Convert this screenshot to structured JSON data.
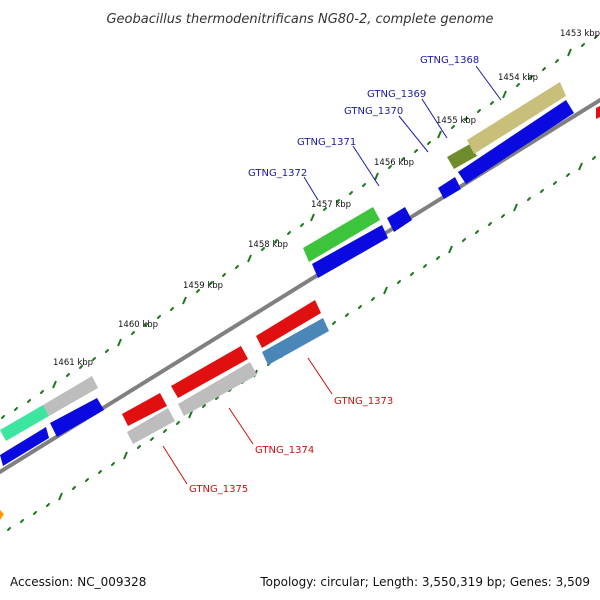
{
  "title": "Geobacillus thermodenitrificans NG80-2, complete genome",
  "footer": {
    "accession": "Accession: NC_009328",
    "summary": "Topology: circular; Length: 3,550,319 bp; Genes: 3,509"
  },
  "scale_labels": [
    "1453 kbp",
    "1454 kbp",
    "1455 kbp",
    "1456 kbp",
    "1457 kbp",
    "1458 kbp",
    "1459 kbp",
    "1460 kbp",
    "1461 kbp"
  ],
  "gene_labels": {
    "forward": [
      "GTNG_1368",
      "GTNG_1369",
      "GTNG_1370",
      "GTNG_1371",
      "GTNG_1372"
    ],
    "reverse": [
      "GTNG_1373",
      "GTNG_1374",
      "GTNG_1375"
    ]
  },
  "colors": {
    "forward_label": "#1a1aa6",
    "reverse_label": "#cc1111",
    "backbone": "#808080",
    "tick": "#1a7a1a",
    "blue_strand": "#0a0ae0",
    "red_gene": "#e01010",
    "grey_gene": "#bdbdbd",
    "green_gene": "#3cc43c",
    "olive_gene": "#c8c07a",
    "steel_gene": "#4a86b8",
    "teal_gene": "#3ce6a0",
    "orange_gene": "#ff9900"
  }
}
